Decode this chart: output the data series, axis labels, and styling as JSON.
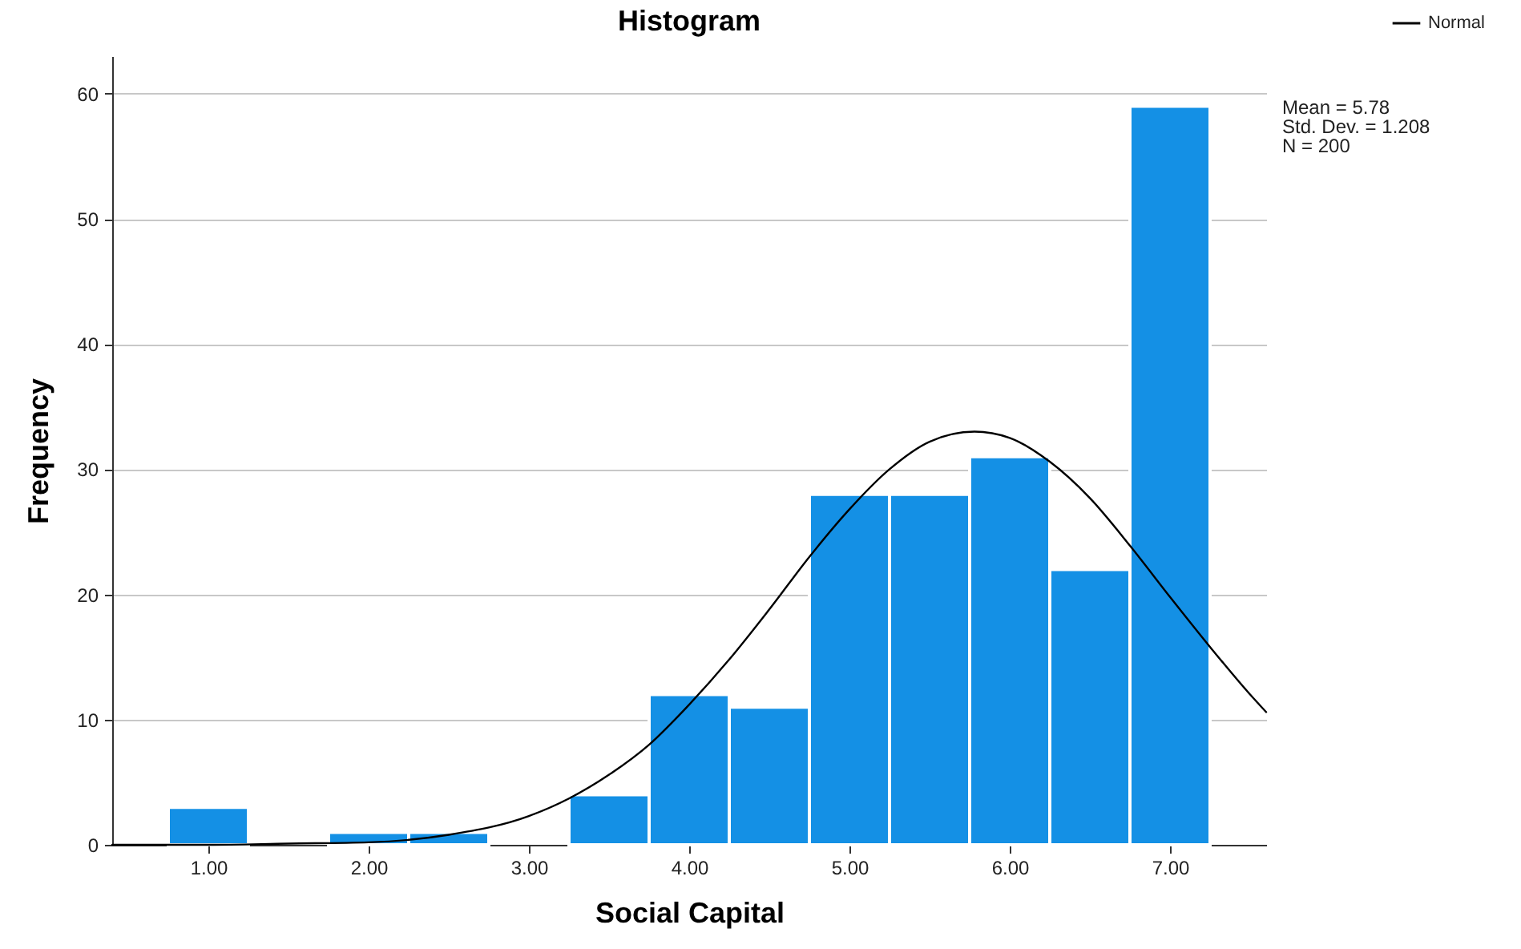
{
  "chart_data": {
    "type": "histogram",
    "title": "Histogram",
    "xlabel": "Social Capital",
    "ylabel": "Frequency",
    "bins": [
      0.75,
      1.25,
      1.75,
      2.25,
      2.75,
      3.25,
      3.75,
      4.25,
      4.75,
      5.25,
      5.75,
      6.25,
      6.75,
      7.25
    ],
    "values": [
      3,
      0,
      1,
      1,
      0,
      4,
      12,
      11,
      28,
      28,
      31,
      22,
      59
    ],
    "color": "#1490e5",
    "series": [
      {
        "name": "Normal",
        "type": "line",
        "color": "#000000",
        "x": [
          0.4,
          1.0,
          1.5,
          2.0,
          2.5,
          3.0,
          3.25,
          3.5,
          3.75,
          4.0,
          4.25,
          4.5,
          4.75,
          5.0,
          5.25,
          5.5,
          5.78,
          6.0,
          6.25,
          6.5,
          6.75,
          7.0,
          7.25,
          7.5,
          7.6
        ],
        "values": [
          0.0,
          0.0,
          0.1,
          0.2,
          0.8,
          2.3,
          3.7,
          5.6,
          8.0,
          11.2,
          14.8,
          18.8,
          23.0,
          26.8,
          30.0,
          32.2,
          33.0,
          32.5,
          30.6,
          27.7,
          23.9,
          19.8,
          15.8,
          12.0,
          10.6
        ]
      }
    ],
    "xlim": [
      0.4,
      7.6
    ],
    "xticks": [
      {
        "value": 1,
        "label": "1.00"
      },
      {
        "value": 2,
        "label": "2.00"
      },
      {
        "value": 3,
        "label": "3.00"
      },
      {
        "value": 4,
        "label": "4.00"
      },
      {
        "value": 5,
        "label": "5.00"
      },
      {
        "value": 6,
        "label": "6.00"
      },
      {
        "value": 7,
        "label": "7.00"
      }
    ],
    "ylim": [
      0,
      63
    ],
    "yticks": [
      0,
      10,
      20,
      30,
      40,
      50,
      60
    ],
    "grid": "y",
    "legend": "top right",
    "annotations": [
      "Mean = 5.78",
      "Std. Dev. = 1.208",
      "N = 200"
    ]
  }
}
